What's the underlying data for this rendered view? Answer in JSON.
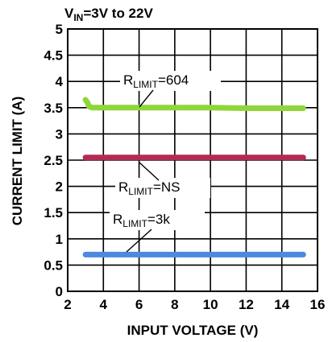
{
  "chart_data": {
    "type": "line",
    "subtitle_main": "V",
    "subtitle_sub": "IN",
    "subtitle_rest": "=3V to 22V",
    "xlabel": "INPUT VOLTAGE (V)",
    "ylabel": "CURRENT LIMIT (A)",
    "xlim": [
      2,
      16
    ],
    "ylim": [
      0,
      5
    ],
    "xticks": [
      "2",
      "4",
      "6",
      "8",
      "10",
      "12",
      "14",
      "16"
    ],
    "yticks": [
      "0",
      "0.5",
      "1",
      "1.5",
      "2",
      "2.5",
      "3",
      "3.5",
      "4",
      "4.5",
      "5"
    ],
    "grid": true,
    "series": [
      {
        "annotation_main": "R",
        "annotation_sub": "LIMIT",
        "annotation_rest": "=604",
        "color": "#8fd63a",
        "x": [
          3.0,
          3.1,
          3.2,
          3.4,
          4,
          6,
          8,
          10,
          12,
          14,
          15.2
        ],
        "y": [
          3.65,
          3.6,
          3.52,
          3.5,
          3.5,
          3.5,
          3.5,
          3.5,
          3.49,
          3.49,
          3.49
        ]
      },
      {
        "annotation_main": "R",
        "annotation_sub": "LIMIT",
        "annotation_rest": "=NS",
        "color": "#b22b55",
        "x": [
          3.0,
          15.2
        ],
        "y": [
          2.55,
          2.55
        ]
      },
      {
        "annotation_main": "R",
        "annotation_sub": "LIMIT",
        "annotation_rest": "=3k",
        "color": "#4a8ae0",
        "x": [
          3.0,
          15.2
        ],
        "y": [
          0.7,
          0.7
        ]
      }
    ]
  }
}
